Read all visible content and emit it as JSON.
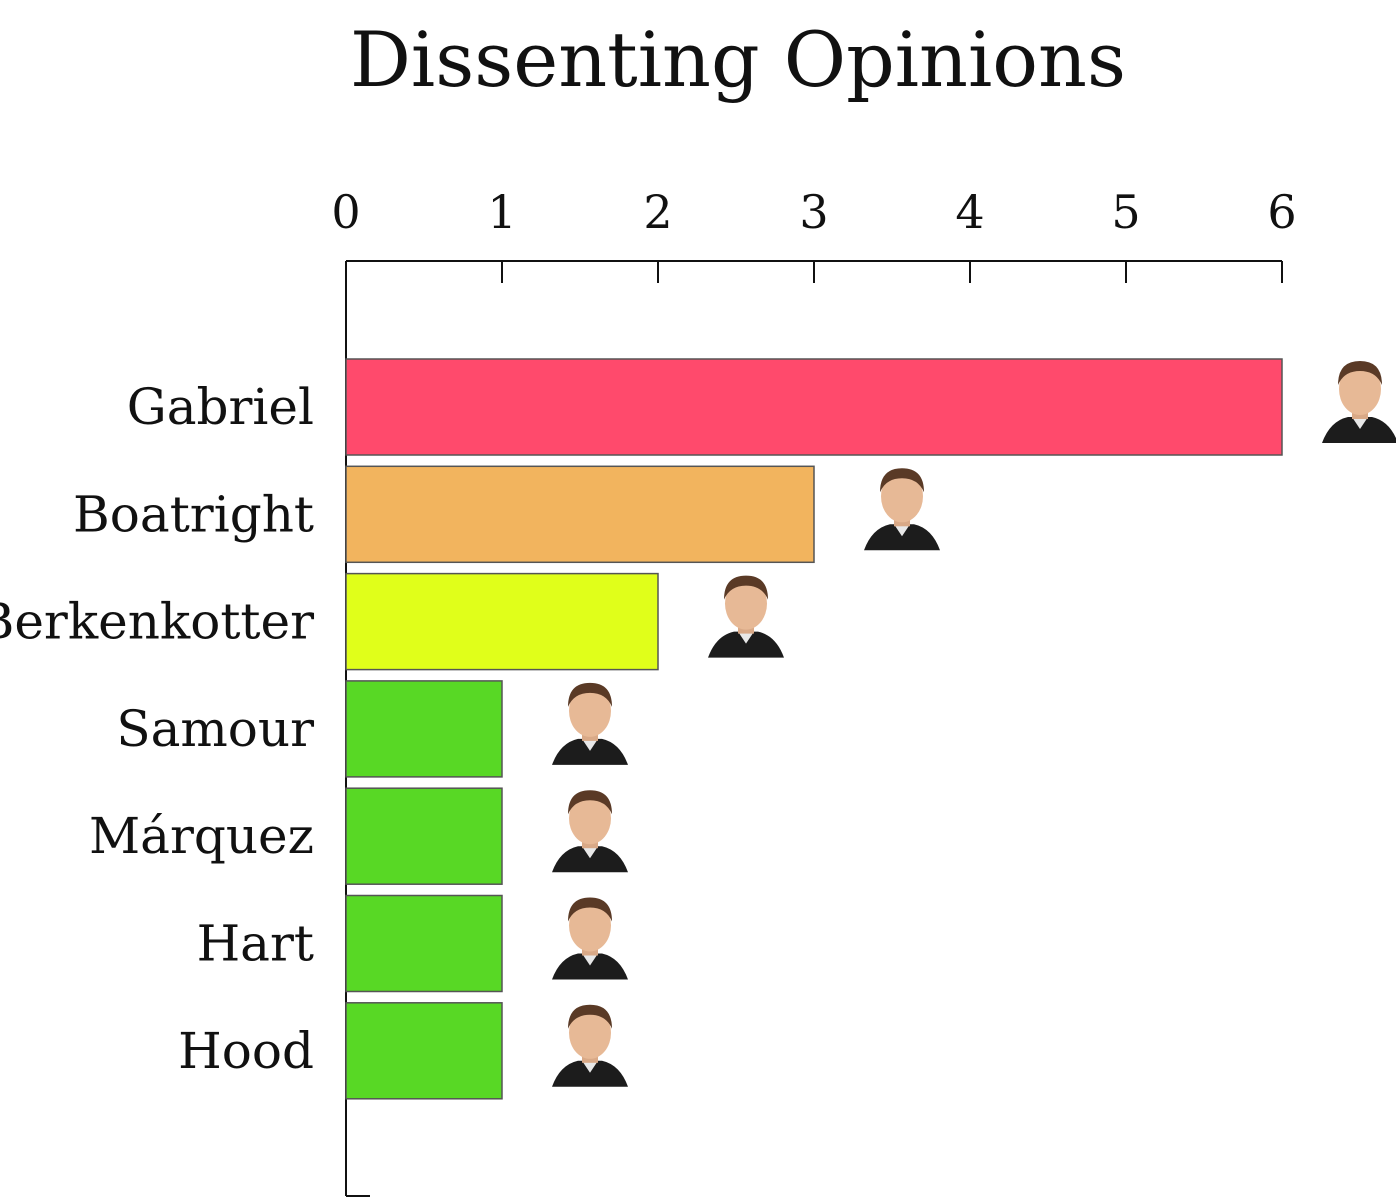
{
  "chart_data": {
    "type": "bar",
    "orientation": "horizontal",
    "title": "Dissenting Opinions",
    "xlabel": "",
    "ylabel": "",
    "xlim": [
      0,
      6
    ],
    "ticks": [
      0,
      1,
      2,
      3,
      4,
      5,
      6
    ],
    "grid": false,
    "axis_position": "top",
    "categories": [
      "Gabriel",
      "Boatright",
      "Berkenkotter",
      "Samour",
      "Márquez",
      "Hart",
      "Hood"
    ],
    "values": [
      6,
      3,
      2,
      1,
      1,
      1,
      1
    ],
    "colors": [
      "#ff4a6c",
      "#f2b45e",
      "#e0ff1a",
      "#58d825",
      "#58d825",
      "#58d825",
      "#58d825"
    ],
    "bar_annotations": [
      "portrait-photo",
      "portrait-photo",
      "portrait-photo",
      "portrait-photo",
      "portrait-photo",
      "portrait-photo",
      "portrait-photo"
    ]
  }
}
